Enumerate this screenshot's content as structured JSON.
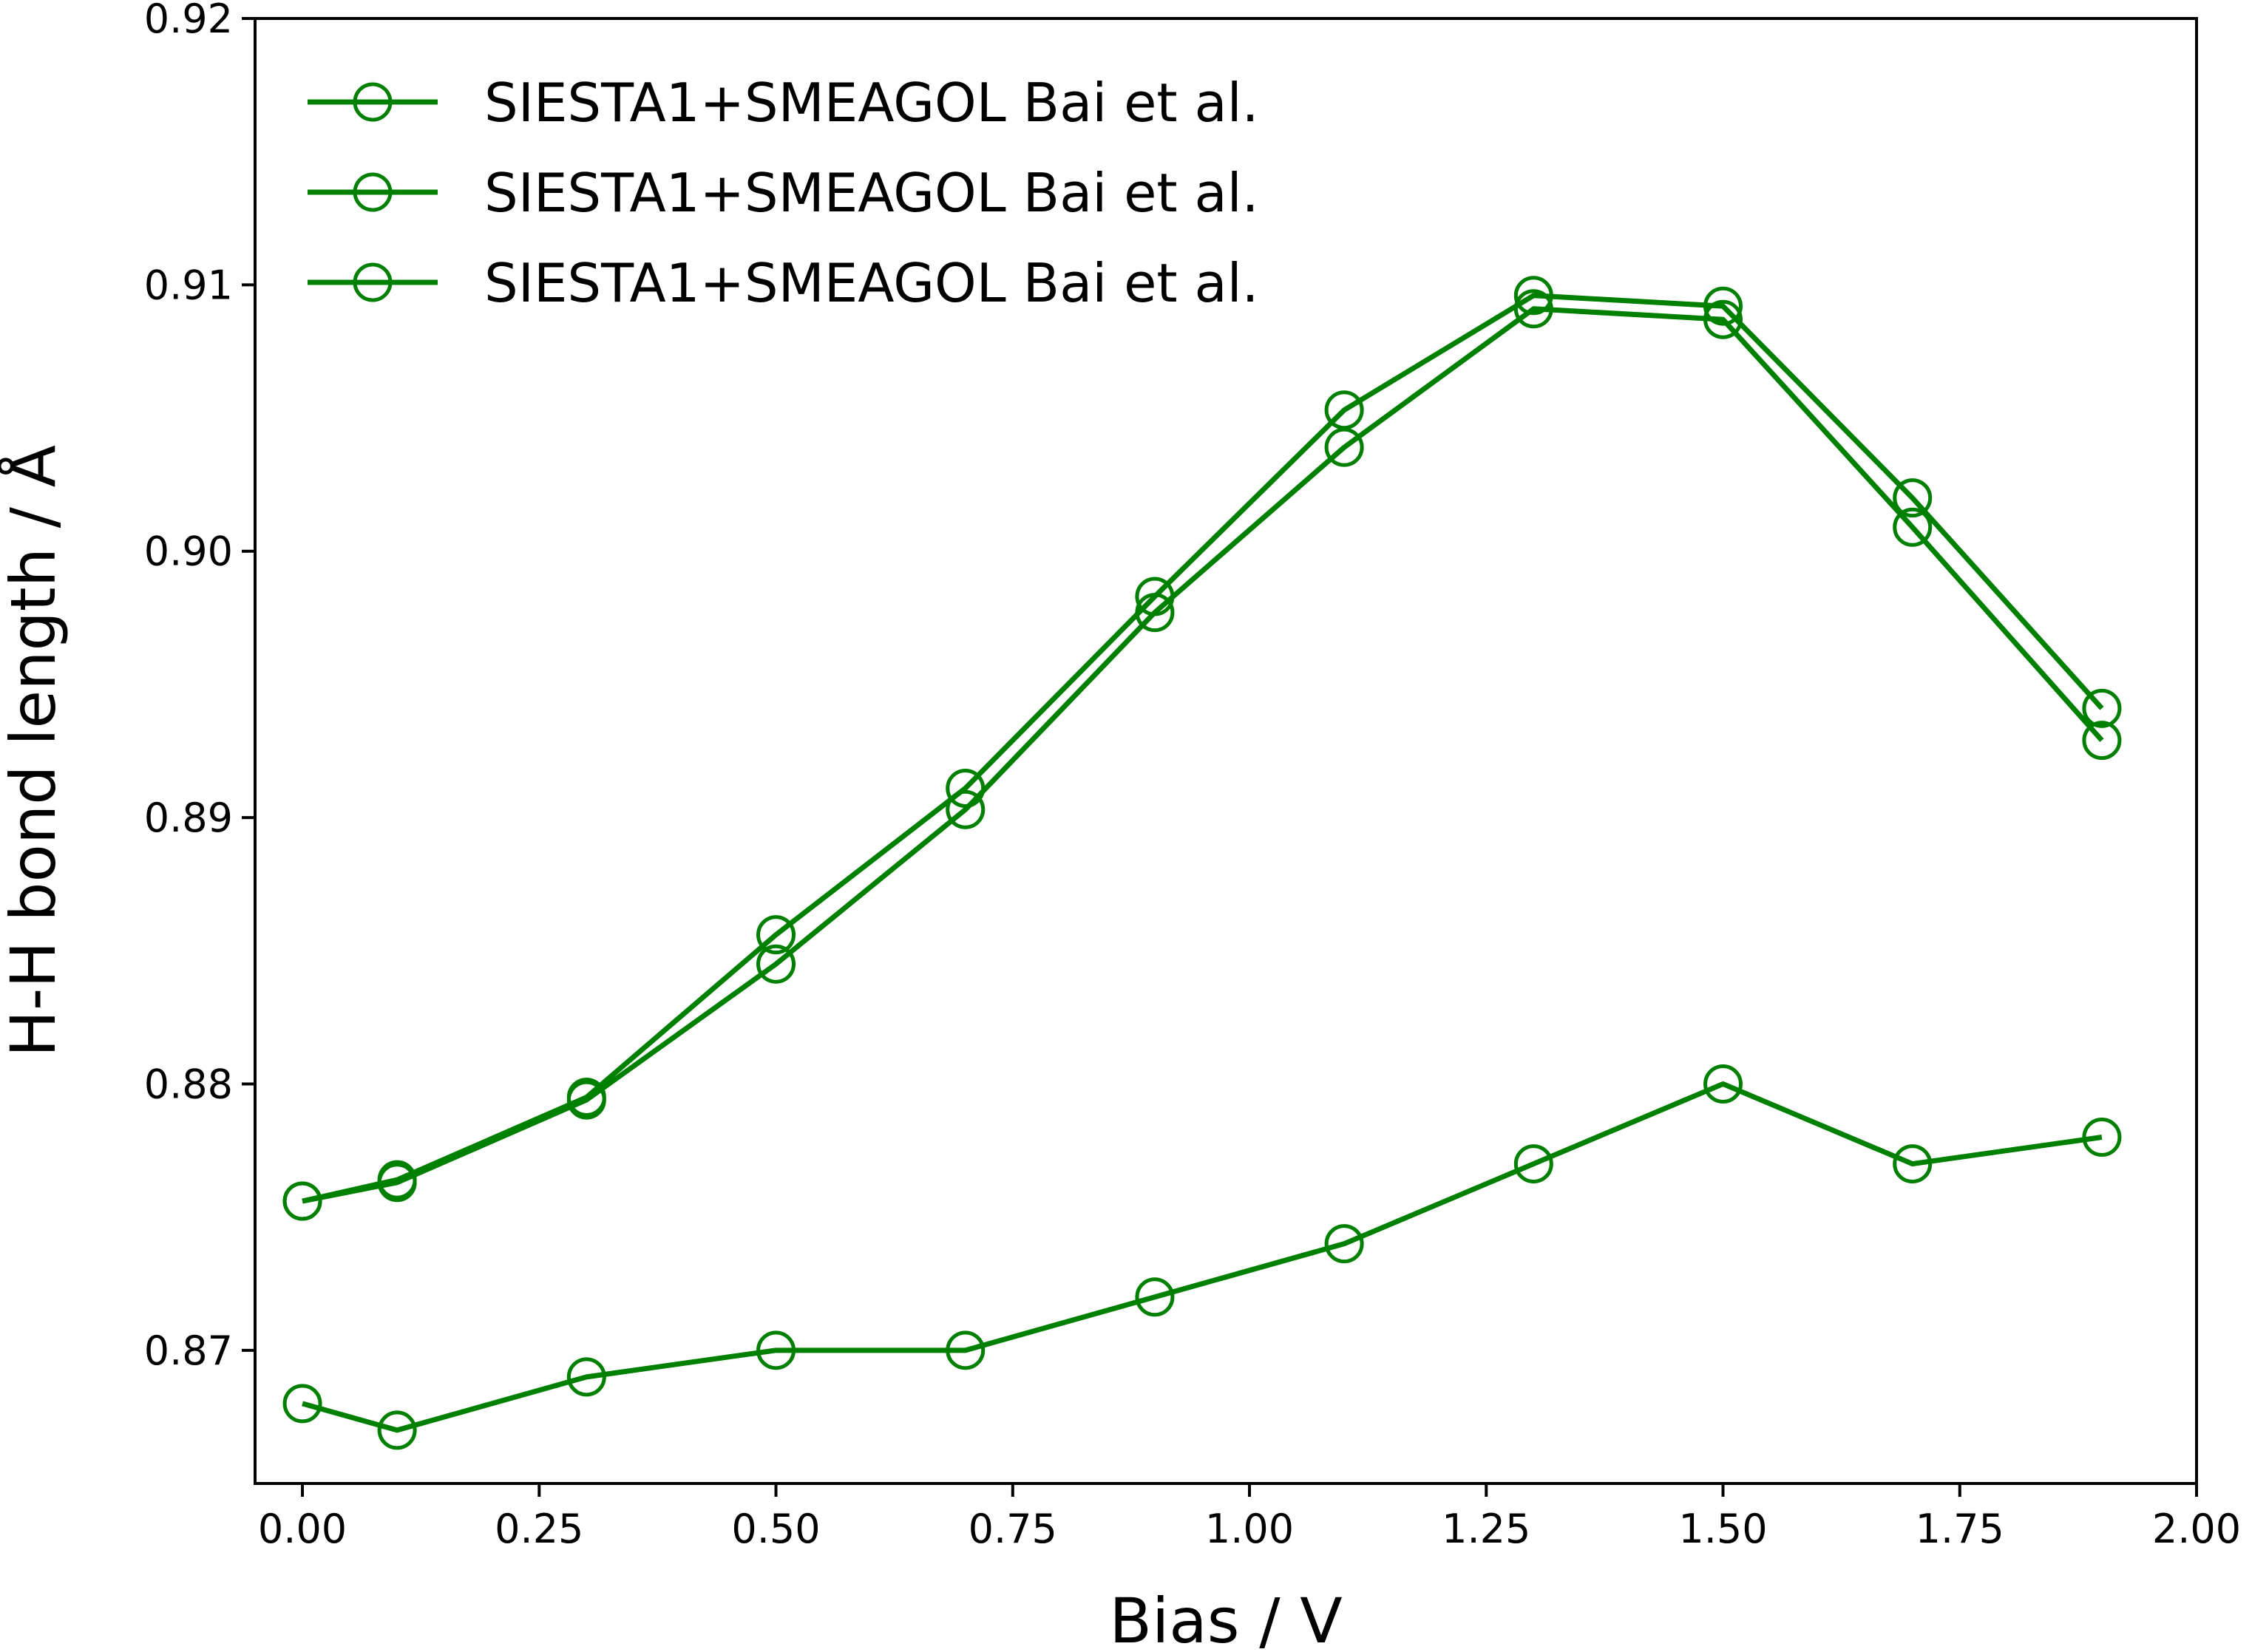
{
  "chart_data": {
    "type": "line",
    "title": "",
    "xlabel": "Bias / V",
    "ylabel": "H-H bond length / Å",
    "xlim": [
      -0.05,
      2.0
    ],
    "ylim": [
      0.865,
      0.92
    ],
    "xticks": [
      0.0,
      0.25,
      0.5,
      0.75,
      1.0,
      1.25,
      1.5,
      1.75,
      2.0
    ],
    "xtick_labels": [
      "0.00",
      "0.25",
      "0.50",
      "0.75",
      "1.00",
      "1.25",
      "1.50",
      "1.75",
      "2.00"
    ],
    "yticks": [
      0.87,
      0.88,
      0.89,
      0.9,
      0.91,
      0.92
    ],
    "ytick_labels": [
      "0.87",
      "0.88",
      "0.89",
      "0.90",
      "0.91",
      "0.92"
    ],
    "grid": false,
    "legend_position": "top-left",
    "color": "#008000",
    "marker": "open-circle",
    "x": [
      0.0,
      0.1,
      0.3,
      0.5,
      0.7,
      0.9,
      1.1,
      1.3,
      1.5,
      1.7,
      1.9
    ],
    "series": [
      {
        "name": "SIESTA1+SMEAGOL Bai et al.",
        "values": [
          0.8756,
          0.8764,
          0.8795,
          0.8856,
          0.8911,
          0.8983,
          0.9053,
          0.9096,
          0.9092,
          0.902,
          0.8941
        ]
      },
      {
        "name": "SIESTA1+SMEAGOL Bai et al.",
        "values": [
          0.8756,
          0.8763,
          0.8794,
          0.8845,
          0.8903,
          0.8977,
          0.9039,
          0.9091,
          0.9087,
          0.9009,
          0.8929
        ]
      },
      {
        "name": "SIESTA1+SMEAGOL Bai et al.",
        "values": [
          0.868,
          0.867,
          0.869,
          0.87,
          0.87,
          0.872,
          0.874,
          0.877,
          0.88,
          0.877,
          0.878
        ]
      }
    ]
  }
}
